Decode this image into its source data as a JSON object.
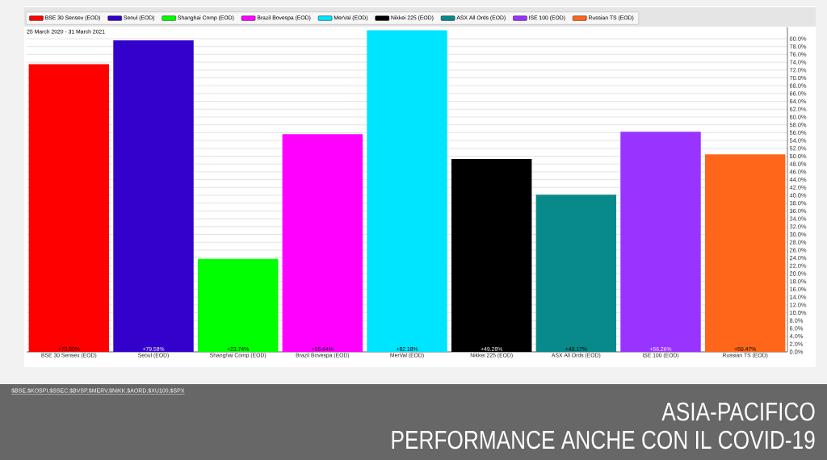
{
  "chart_data": {
    "type": "bar",
    "title": "ASIA-PACIFICO",
    "subtitle": "PERFORMANCE ANCHE CON IL COVID-19",
    "categories": [
      "BSE 30 Sensex (EOD)",
      "Seoul (EOD)",
      "Shanghai Comp (EOD)",
      "Brazil Bovespa (EOD)",
      "MerVal (EOD)",
      "Nikkei 225 (EOD)",
      "ASX All Ords (EOD)",
      "ISE 100 (EOD)",
      "Russian TS (EOD)"
    ],
    "series": [
      {
        "name": "BSE 30 Sensex (EOD)",
        "color": "#ff0000",
        "values": [
          73.5,
          null,
          null,
          null,
          null,
          null,
          null,
          null,
          null
        ],
        "value_labels": [
          "+73.50%",
          null,
          null,
          null,
          null,
          null,
          null,
          null,
          null
        ]
      },
      {
        "name": "Seoul (EOD)",
        "color": "#3300cc",
        "values": [
          null,
          79.58,
          null,
          null,
          null,
          null,
          null,
          null,
          null
        ],
        "value_labels": [
          null,
          "+79.58%",
          null,
          null,
          null,
          null,
          null,
          null,
          null
        ]
      },
      {
        "name": "Shanghai Comp (EOD)",
        "color": "#00ff00",
        "values": [
          null,
          null,
          23.74,
          null,
          null,
          null,
          null,
          null,
          null
        ],
        "value_labels": [
          null,
          null,
          "+23.74%",
          null,
          null,
          null,
          null,
          null,
          null
        ]
      },
      {
        "name": "Brazil Bovespa (EOD)",
        "color": "#ff00ff",
        "values": [
          null,
          null,
          null,
          55.64,
          null,
          null,
          null,
          null,
          null
        ],
        "value_labels": [
          null,
          null,
          null,
          "+55.64%",
          null,
          null,
          null,
          null,
          null
        ]
      },
      {
        "name": "MerVal (EOD)",
        "color": "#00e5ff",
        "values": [
          null,
          null,
          null,
          null,
          82.18,
          null,
          null,
          null,
          null
        ],
        "value_labels": [
          null,
          null,
          null,
          null,
          "+82.18%",
          null,
          null,
          null,
          null
        ]
      },
      {
        "name": "Nikkei 225 (EOD)",
        "color": "#000000",
        "values": [
          null,
          null,
          null,
          null,
          null,
          49.28,
          null,
          null,
          null
        ],
        "value_labels": [
          null,
          null,
          null,
          null,
          null,
          "+49.28%",
          null,
          null,
          null
        ]
      },
      {
        "name": "ASX All Ords (EOD)",
        "color": "#088a8a",
        "values": [
          null,
          null,
          null,
          null,
          null,
          null,
          40.17,
          null,
          null
        ],
        "value_labels": [
          null,
          null,
          null,
          null,
          null,
          null,
          "+40.17%",
          null,
          null
        ]
      },
      {
        "name": "ISE 100 (EOD)",
        "color": "#9933ff",
        "values": [
          null,
          null,
          null,
          null,
          null,
          null,
          null,
          56.26,
          null
        ],
        "value_labels": [
          null,
          null,
          null,
          null,
          null,
          null,
          null,
          "+56.26%",
          null
        ]
      },
      {
        "name": "Russian TS (EOD)",
        "color": "#ff6619",
        "values": [
          null,
          null,
          null,
          null,
          null,
          null,
          null,
          null,
          50.47
        ],
        "value_labels": [
          null,
          null,
          null,
          null,
          null,
          null,
          null,
          null,
          "+50.47%"
        ]
      }
    ],
    "ylim": [
      0,
      83
    ],
    "yticks": [
      {
        "value": 0,
        "label": "0.0%"
      },
      {
        "value": 2,
        "label": "2.0%"
      },
      {
        "value": 4,
        "label": "4.0%"
      },
      {
        "value": 6,
        "label": "6.0%"
      },
      {
        "value": 8,
        "label": "8.0%"
      },
      {
        "value": 10,
        "label": "10.0%"
      },
      {
        "value": 12,
        "label": "12.0%"
      },
      {
        "value": 14,
        "label": "14.0%"
      },
      {
        "value": 16,
        "label": "16.0%"
      },
      {
        "value": 18,
        "label": "18.0%"
      },
      {
        "value": 20,
        "label": "20.0%"
      },
      {
        "value": 22,
        "label": "22.0%"
      },
      {
        "value": 24,
        "label": "24.0%"
      },
      {
        "value": 26,
        "label": "26.0%"
      },
      {
        "value": 28,
        "label": "28.0%"
      },
      {
        "value": 30,
        "label": "30.0%"
      },
      {
        "value": 32,
        "label": "32.0%"
      },
      {
        "value": 34,
        "label": "34.0%"
      },
      {
        "value": 36,
        "label": "36.0%"
      },
      {
        "value": 38,
        "label": "38.0%"
      },
      {
        "value": 40,
        "label": "40.0%"
      },
      {
        "value": 42,
        "label": "42.0%"
      },
      {
        "value": 44,
        "label": "44.0%"
      },
      {
        "value": 46,
        "label": "46.0%"
      },
      {
        "value": 48,
        "label": "48.0%"
      },
      {
        "value": 50,
        "label": "50.0%"
      },
      {
        "value": 52,
        "label": "52.0%"
      },
      {
        "value": 54,
        "label": "54.0%"
      },
      {
        "value": 56,
        "label": "56.0%"
      },
      {
        "value": 58,
        "label": "58.0%"
      },
      {
        "value": 60,
        "label": "60.0%"
      },
      {
        "value": 62,
        "label": "62.0%"
      },
      {
        "value": 64,
        "label": "64.0%"
      },
      {
        "value": 66,
        "label": "66.0%"
      },
      {
        "value": 68,
        "label": "68.0%"
      },
      {
        "value": 70,
        "label": "70.0%"
      },
      {
        "value": 72,
        "label": "72.0%"
      },
      {
        "value": 74,
        "label": "74.0%"
      },
      {
        "value": 76,
        "label": "76.0%"
      },
      {
        "value": 78,
        "label": "78.0%"
      },
      {
        "value": 80,
        "label": "80.0%"
      }
    ],
    "grid": "y",
    "legend": "top",
    "annotations": [
      "25 March 2020 - 31 March 2021",
      "$BSE,$KOSPI,$SSEC,$BVSP,$MERV,$NIKK,$AORD,$XU100,$SPX"
    ]
  }
}
